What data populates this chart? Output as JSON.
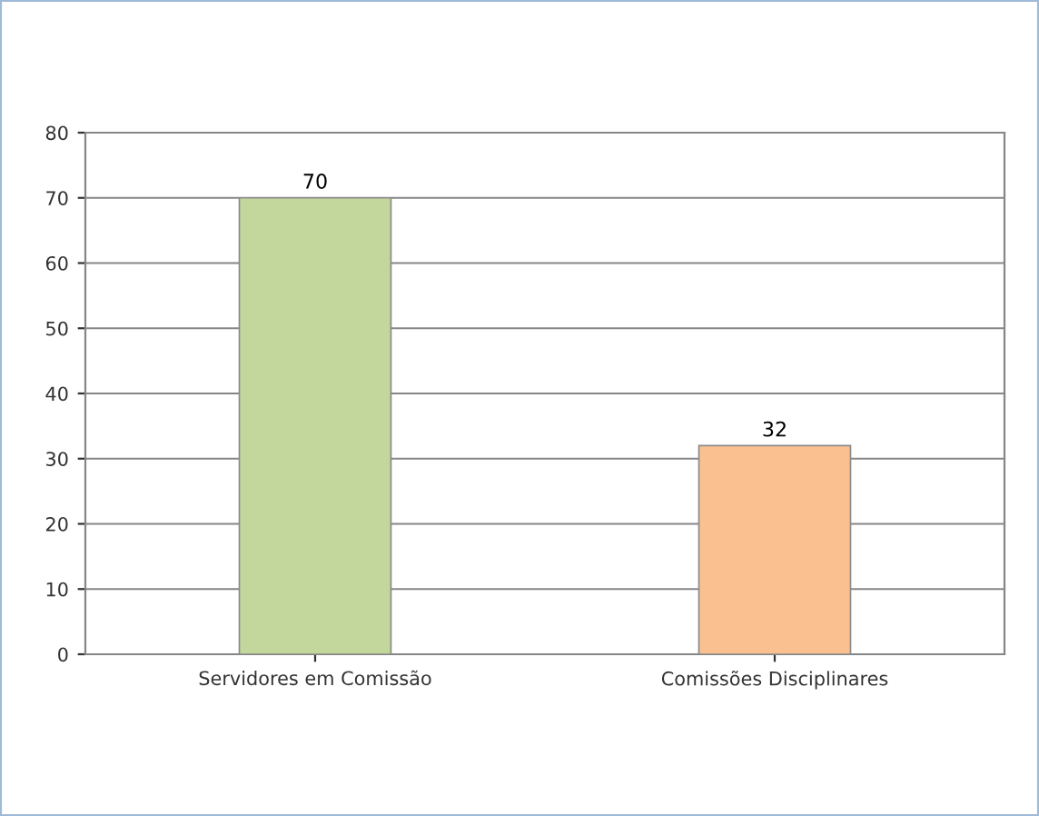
{
  "chart_data": {
    "type": "bar",
    "categories": [
      "Servidores em Comissão",
      "Comissões Disciplinares"
    ],
    "values": [
      70,
      32
    ],
    "colors": [
      "#c3d69b",
      "#fac08f"
    ],
    "ylim": [
      0,
      80
    ],
    "yticks": [
      0,
      10,
      20,
      30,
      40,
      50,
      60,
      70,
      80
    ],
    "grid": "y",
    "data_labels": true
  }
}
